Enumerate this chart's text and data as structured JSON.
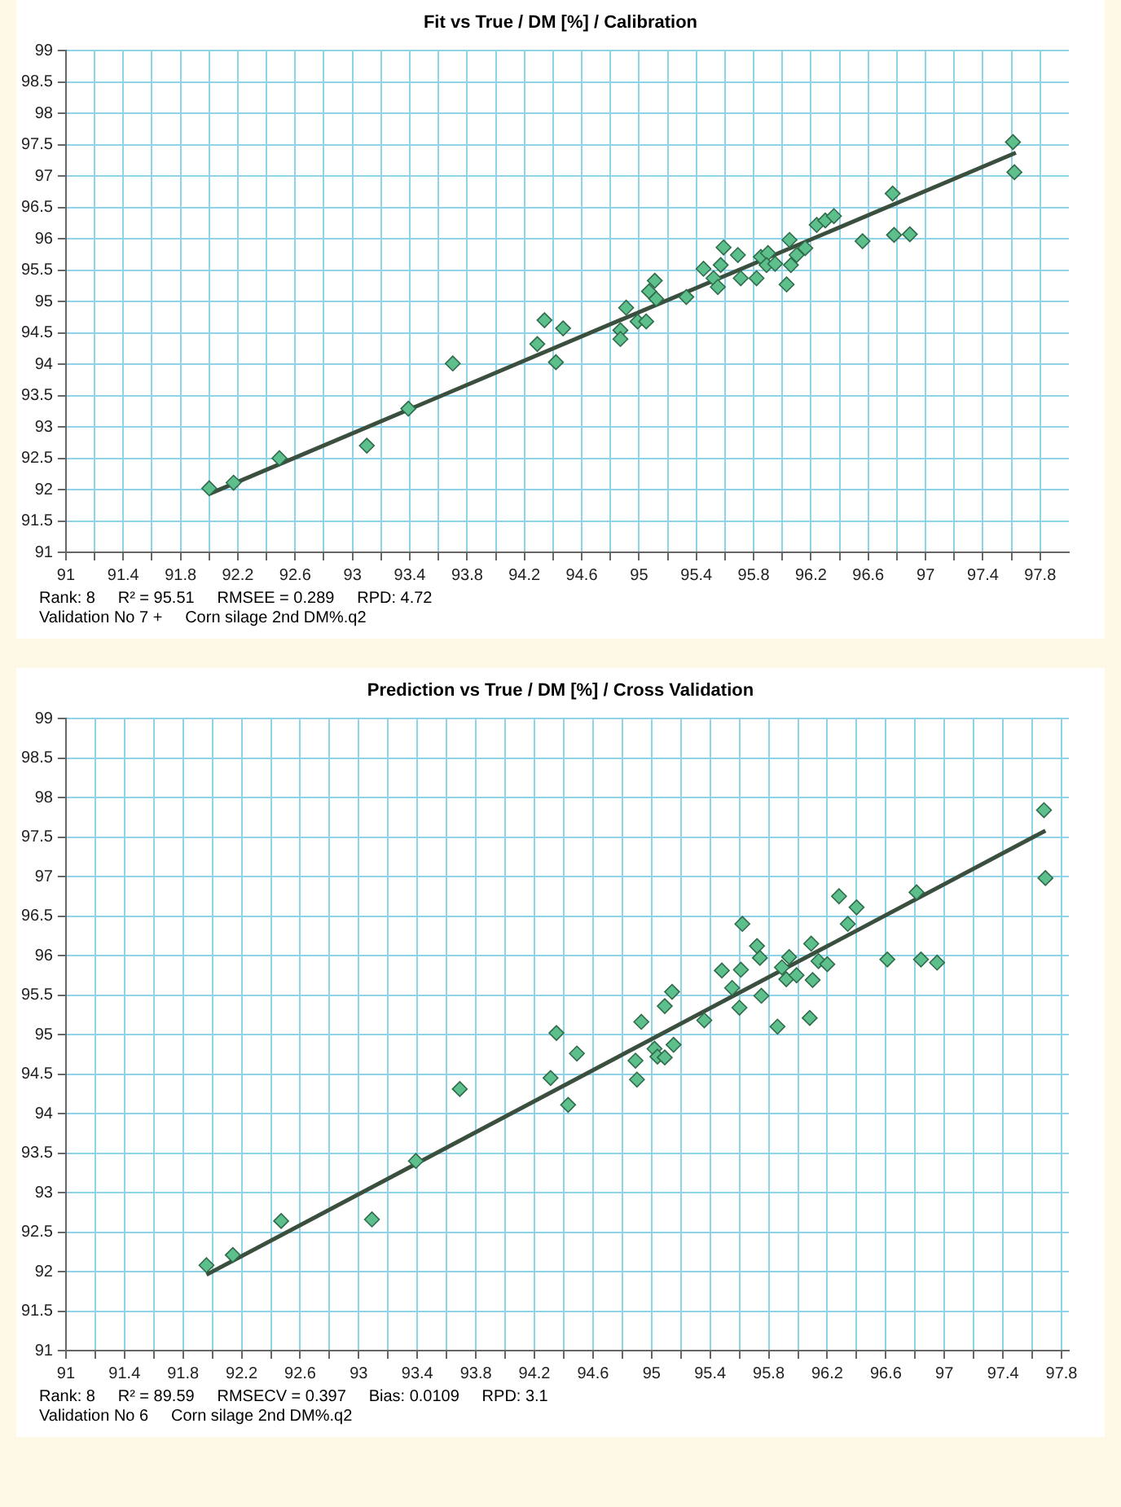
{
  "chart_data": [
    {
      "type": "scatter",
      "title": "Fit vs True  /  DM [%]  /  Calibration",
      "grid": true,
      "legend": false,
      "xlim": [
        91,
        98
      ],
      "ylim": [
        91,
        99
      ],
      "xticks": [
        91,
        {
          "value": 91.2,
          "label": null
        },
        91.4,
        {
          "value": 91.6,
          "label": null
        },
        91.8,
        {
          "value": 92,
          "label": null
        },
        92.2,
        {
          "value": 92.4,
          "label": null
        },
        92.6,
        {
          "value": 92.8,
          "label": null
        },
        93,
        {
          "value": 93.2,
          "label": null
        },
        93.4,
        {
          "value": 93.6,
          "label": null
        },
        93.8,
        {
          "value": 94,
          "label": null
        },
        94.2,
        {
          "value": 94.4,
          "label": null
        },
        94.6,
        {
          "value": 94.8,
          "label": null
        },
        95,
        {
          "value": 95.2,
          "label": null
        },
        95.4,
        {
          "value": 95.6,
          "label": null
        },
        95.8,
        {
          "value": 96,
          "label": null
        },
        96.2,
        {
          "value": 96.4,
          "label": null
        },
        96.6,
        {
          "value": 96.8,
          "label": null
        },
        97,
        {
          "value": 97.2,
          "label": null
        },
        97.4,
        {
          "value": 97.6,
          "label": null
        },
        97.8
      ],
      "yticks": [
        91,
        91.5,
        92,
        92.5,
        93,
        93.5,
        94,
        94.5,
        95,
        95.5,
        96,
        96.5,
        97,
        97.5,
        98,
        98.5,
        99
      ],
      "series": [
        {
          "color": "#5dbf8c",
          "marker": "diamond",
          "x": [
            92.0,
            92.17,
            92.49,
            93.1,
            93.39,
            93.7,
            94.29,
            94.34,
            94.42,
            94.47,
            94.87,
            94.87,
            94.91,
            94.99,
            95.05,
            95.07,
            95.11,
            95.12,
            95.33,
            95.45,
            95.52,
            95.55,
            95.57,
            95.59,
            95.69,
            95.71,
            95.82,
            95.85,
            95.9,
            95.89,
            95.95,
            96.03,
            96.05,
            96.06,
            96.1,
            96.16,
            96.24,
            96.3,
            96.36,
            96.56,
            96.77,
            96.78,
            96.89,
            97.61,
            97.62
          ],
          "values": [
            92.02,
            92.11,
            92.5,
            92.7,
            93.29,
            94.01,
            94.32,
            94.7,
            94.03,
            94.57,
            94.54,
            94.4,
            94.9,
            94.68,
            94.68,
            95.16,
            95.33,
            95.04,
            95.07,
            95.52,
            95.37,
            95.23,
            95.58,
            95.86,
            95.74,
            95.37,
            95.37,
            95.71,
            95.77,
            95.58,
            95.6,
            95.27,
            95.98,
            95.58,
            95.74,
            95.85,
            96.22,
            96.29,
            96.36,
            95.96,
            96.72,
            96.06,
            96.07,
            97.54,
            97.06
          ]
        },
        {
          "type": "line",
          "color": "#3b4f3f",
          "marker": "none",
          "x": [
            92.0,
            97.63
          ],
          "values": [
            91.93,
            97.37
          ]
        }
      ],
      "annotations": [
        "Rank: 8     R² = 95.51     RMSEE = 0.289     RPD: 4.72",
        "Validation No 7 +     Corn silage 2nd DM%.q2"
      ]
    },
    {
      "type": "scatter",
      "title": "Prediction vs True  /  DM [%]  /  Cross Validation",
      "grid": true,
      "legend": false,
      "xlim": [
        91,
        97.85
      ],
      "ylim": [
        91,
        99
      ],
      "xticks": [
        91,
        {
          "value": 91.2,
          "label": null
        },
        91.4,
        {
          "value": 91.6,
          "label": null
        },
        91.8,
        {
          "value": 92,
          "label": null
        },
        92.2,
        {
          "value": 92.4,
          "label": null
        },
        92.6,
        {
          "value": 92.8,
          "label": null
        },
        93,
        {
          "value": 93.2,
          "label": null
        },
        93.4,
        {
          "value": 93.6,
          "label": null
        },
        93.8,
        {
          "value": 94,
          "label": null
        },
        94.2,
        {
          "value": 94.4,
          "label": null
        },
        94.6,
        {
          "value": 94.8,
          "label": null
        },
        95,
        {
          "value": 95.2,
          "label": null
        },
        95.4,
        {
          "value": 95.6,
          "label": null
        },
        95.8,
        {
          "value": 96,
          "label": null
        },
        96.2,
        {
          "value": 96.4,
          "label": null
        },
        96.6,
        {
          "value": 96.8,
          "label": null
        },
        97,
        {
          "value": 97.2,
          "label": null
        },
        97.4,
        {
          "value": 97.6,
          "label": null
        },
        97.8
      ],
      "yticks": [
        91,
        91.5,
        92,
        92.5,
        93,
        93.5,
        94,
        94.5,
        95,
        95.5,
        96,
        96.5,
        97,
        97.5,
        98,
        98.5,
        99
      ],
      "series": [
        {
          "color": "#5dbf8c",
          "marker": "diamond",
          "x": [
            91.96,
            92.14,
            92.47,
            93.09,
            93.39,
            93.69,
            94.31,
            94.35,
            94.43,
            94.49,
            94.89,
            94.9,
            94.93,
            95.02,
            95.04,
            95.09,
            95.09,
            95.14,
            95.15,
            95.36,
            95.48,
            95.55,
            95.6,
            95.61,
            95.62,
            95.72,
            95.74,
            95.75,
            95.86,
            95.89,
            95.92,
            95.94,
            95.99,
            96.08,
            96.09,
            96.1,
            96.14,
            96.2,
            96.28,
            96.34,
            96.4,
            96.61,
            96.81,
            96.84,
            96.95,
            97.68,
            97.69
          ],
          "values": [
            92.08,
            92.21,
            92.64,
            92.66,
            93.4,
            94.31,
            94.45,
            95.02,
            94.11,
            94.76,
            94.67,
            94.43,
            95.16,
            94.82,
            94.72,
            94.71,
            95.36,
            95.54,
            94.87,
            95.18,
            95.81,
            95.59,
            95.34,
            95.82,
            96.4,
            96.12,
            95.97,
            95.49,
            95.1,
            95.85,
            95.7,
            95.98,
            95.75,
            95.21,
            96.15,
            95.69,
            95.93,
            95.89,
            96.75,
            96.4,
            96.61,
            95.95,
            96.8,
            95.95,
            95.91,
            97.84,
            96.98
          ]
        },
        {
          "type": "line",
          "color": "#3b4f3f",
          "marker": "none",
          "x": [
            91.96,
            97.69
          ],
          "values": [
            91.96,
            97.58
          ]
        }
      ],
      "annotations": [
        "Rank: 8     R² = 89.59     RMSECV = 0.397     Bias: 0.0109     RPD: 3.1",
        "Validation No 6     Corn silage 2nd DM%.q2"
      ]
    }
  ]
}
